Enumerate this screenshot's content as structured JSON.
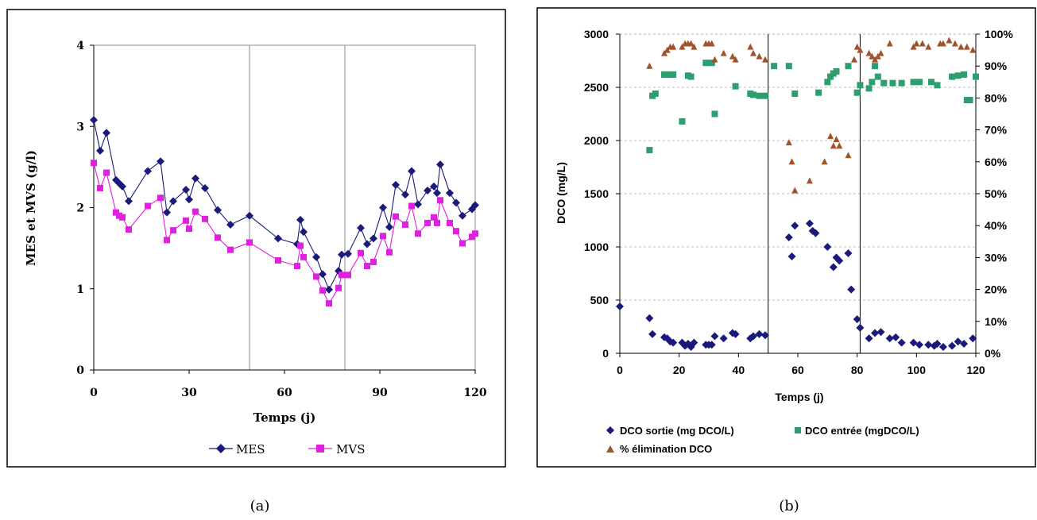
{
  "captions": [
    "(a)",
    "(b)"
  ],
  "chart_data": [
    {
      "type": "line",
      "xlabel": "Temps (j)",
      "ylabel": "MES et MVS (g/l)",
      "xlim": [
        0,
        120
      ],
      "ylim": [
        0,
        4
      ],
      "xticks": [
        "0",
        "30",
        "60",
        "90",
        "120"
      ],
      "yticks": [
        "0",
        "1",
        "2",
        "3",
        "4"
      ],
      "vertical_lines_x": [
        49,
        79
      ],
      "legend_position": "bottom",
      "colors": {
        "MES": "#1a1a7a",
        "MVS": "#e020e0"
      },
      "series": [
        {
          "name": "MES",
          "x": [
            0,
            2,
            4,
            7,
            8,
            9,
            11,
            17,
            21,
            23,
            25,
            29,
            30,
            32,
            35,
            39,
            43,
            49,
            58,
            64,
            65,
            66,
            70,
            72,
            74,
            77,
            78,
            80,
            84,
            86,
            88,
            91,
            93,
            95,
            98,
            100,
            102,
            105,
            107,
            108,
            109,
            112,
            114,
            116,
            119,
            120
          ],
          "y": [
            3.08,
            2.7,
            2.92,
            2.34,
            2.3,
            2.26,
            2.08,
            2.45,
            2.57,
            1.94,
            2.08,
            2.22,
            2.1,
            2.36,
            2.24,
            1.97,
            1.79,
            1.9,
            1.62,
            1.55,
            1.85,
            1.7,
            1.39,
            1.18,
            0.99,
            1.22,
            1.42,
            1.43,
            1.75,
            1.55,
            1.62,
            2.0,
            1.76,
            2.28,
            2.16,
            2.45,
            2.04,
            2.21,
            2.26,
            2.18,
            2.53,
            2.18,
            2.06,
            1.9,
            1.98,
            2.03
          ]
        },
        {
          "name": "MVS",
          "x": [
            0,
            2,
            4,
            7,
            8,
            9,
            11,
            17,
            21,
            23,
            25,
            29,
            30,
            32,
            35,
            39,
            43,
            49,
            58,
            64,
            65,
            66,
            70,
            72,
            74,
            77,
            78,
            80,
            84,
            86,
            88,
            91,
            93,
            95,
            98,
            100,
            102,
            105,
            107,
            108,
            109,
            112,
            114,
            116,
            119,
            120
          ],
          "y": [
            2.55,
            2.24,
            2.43,
            1.94,
            1.9,
            1.88,
            1.73,
            2.02,
            2.12,
            1.6,
            1.72,
            1.84,
            1.74,
            1.95,
            1.86,
            1.63,
            1.48,
            1.57,
            1.35,
            1.28,
            1.53,
            1.39,
            1.15,
            0.98,
            0.82,
            1.01,
            1.17,
            1.17,
            1.44,
            1.28,
            1.33,
            1.65,
            1.45,
            1.89,
            1.79,
            2.02,
            1.68,
            1.81,
            1.88,
            1.81,
            2.09,
            1.81,
            1.71,
            1.56,
            1.64,
            1.68
          ]
        }
      ]
    },
    {
      "type": "scatter",
      "xlabel": "Temps (j)",
      "ylabel": "DCO (mg/L)",
      "xlim": [
        0,
        120
      ],
      "ylim": [
        0,
        3000
      ],
      "y2lim": [
        0,
        100
      ],
      "xticks": [
        "0",
        "20",
        "40",
        "60",
        "80",
        "100",
        "120"
      ],
      "yticks": [
        "0",
        "500",
        "1000",
        "1500",
        "2000",
        "2500",
        "3000"
      ],
      "y2ticks": [
        "0%",
        "10%",
        "20%",
        "30%",
        "40%",
        "50%",
        "60%",
        "70%",
        "80%",
        "90%",
        "100%"
      ],
      "grid": true,
      "vertical_lines_x": [
        50,
        81
      ],
      "legend_position": "bottom",
      "colors": {
        "sortie": "#1a1a7a",
        "entree": "#2e9e6e",
        "elim": "#a0522d"
      },
      "series": [
        {
          "name": "DCO sortie  (mg DCO/L)",
          "axis": "left",
          "x": [
            0,
            10,
            11,
            15,
            16,
            17,
            18,
            21,
            22,
            23,
            24,
            25,
            29,
            30,
            31,
            32,
            35,
            38,
            39,
            44,
            45,
            47,
            49,
            57,
            58,
            59,
            64,
            65,
            66,
            70,
            72,
            73,
            74,
            77,
            78,
            80,
            81,
            84,
            86,
            88,
            91,
            93,
            95,
            99,
            101,
            104,
            106,
            107,
            109,
            112,
            114,
            116,
            119
          ],
          "y": [
            440,
            330,
            180,
            150,
            140,
            110,
            100,
            100,
            70,
            90,
            60,
            100,
            80,
            80,
            80,
            160,
            140,
            190,
            180,
            140,
            160,
            180,
            170,
            1090,
            910,
            1200,
            1220,
            1150,
            1130,
            1000,
            810,
            900,
            870,
            940,
            600,
            320,
            240,
            140,
            190,
            200,
            140,
            150,
            100,
            100,
            80,
            80,
            70,
            90,
            60,
            70,
            110,
            90,
            140
          ]
        },
        {
          "name": "DCO entrée (mgDCO/L)",
          "axis": "left",
          "x": [
            10,
            11,
            12,
            15,
            16,
            17,
            18,
            21,
            23,
            24,
            29,
            30,
            31,
            32,
            39,
            44,
            45,
            47,
            49,
            52,
            57,
            59,
            67,
            70,
            71,
            72,
            73,
            77,
            80,
            81,
            84,
            85,
            86,
            87,
            89,
            92,
            95,
            99,
            101,
            105,
            107,
            112,
            114,
            116,
            117,
            118,
            120
          ],
          "y": [
            1910,
            2420,
            2440,
            2620,
            2620,
            2620,
            2620,
            2180,
            2610,
            2600,
            2730,
            2730,
            2730,
            2250,
            2510,
            2440,
            2430,
            2420,
            2420,
            2700,
            2700,
            2440,
            2450,
            2550,
            2600,
            2630,
            2650,
            2700,
            2450,
            2520,
            2490,
            2550,
            2700,
            2600,
            2540,
            2540,
            2540,
            2550,
            2550,
            2550,
            2520,
            2600,
            2610,
            2620,
            2380,
            2380,
            2600
          ]
        },
        {
          "name": "% élimination DCO",
          "axis": "right",
          "x": [
            10,
            15,
            16,
            17,
            18,
            21,
            22,
            23,
            24,
            25,
            29,
            30,
            31,
            32,
            35,
            38,
            39,
            44,
            45,
            47,
            49,
            57,
            58,
            59,
            64,
            69,
            71,
            72,
            73,
            74,
            77,
            79,
            80,
            81,
            84,
            85,
            86,
            87,
            88,
            91,
            99,
            100,
            102,
            104,
            108,
            109,
            111,
            113,
            115,
            117,
            119
          ],
          "y": [
            90,
            94,
            95,
            96,
            96,
            96,
            97,
            97,
            97,
            96,
            97,
            97,
            97,
            92,
            94,
            93,
            92,
            96,
            94,
            93,
            92,
            66,
            60,
            51,
            54,
            60,
            68,
            65,
            67,
            65,
            62,
            92,
            96,
            95,
            94,
            93,
            92,
            93,
            94,
            97,
            96,
            97,
            97,
            96,
            97,
            97,
            98,
            97,
            96,
            96,
            95
          ]
        }
      ]
    }
  ]
}
